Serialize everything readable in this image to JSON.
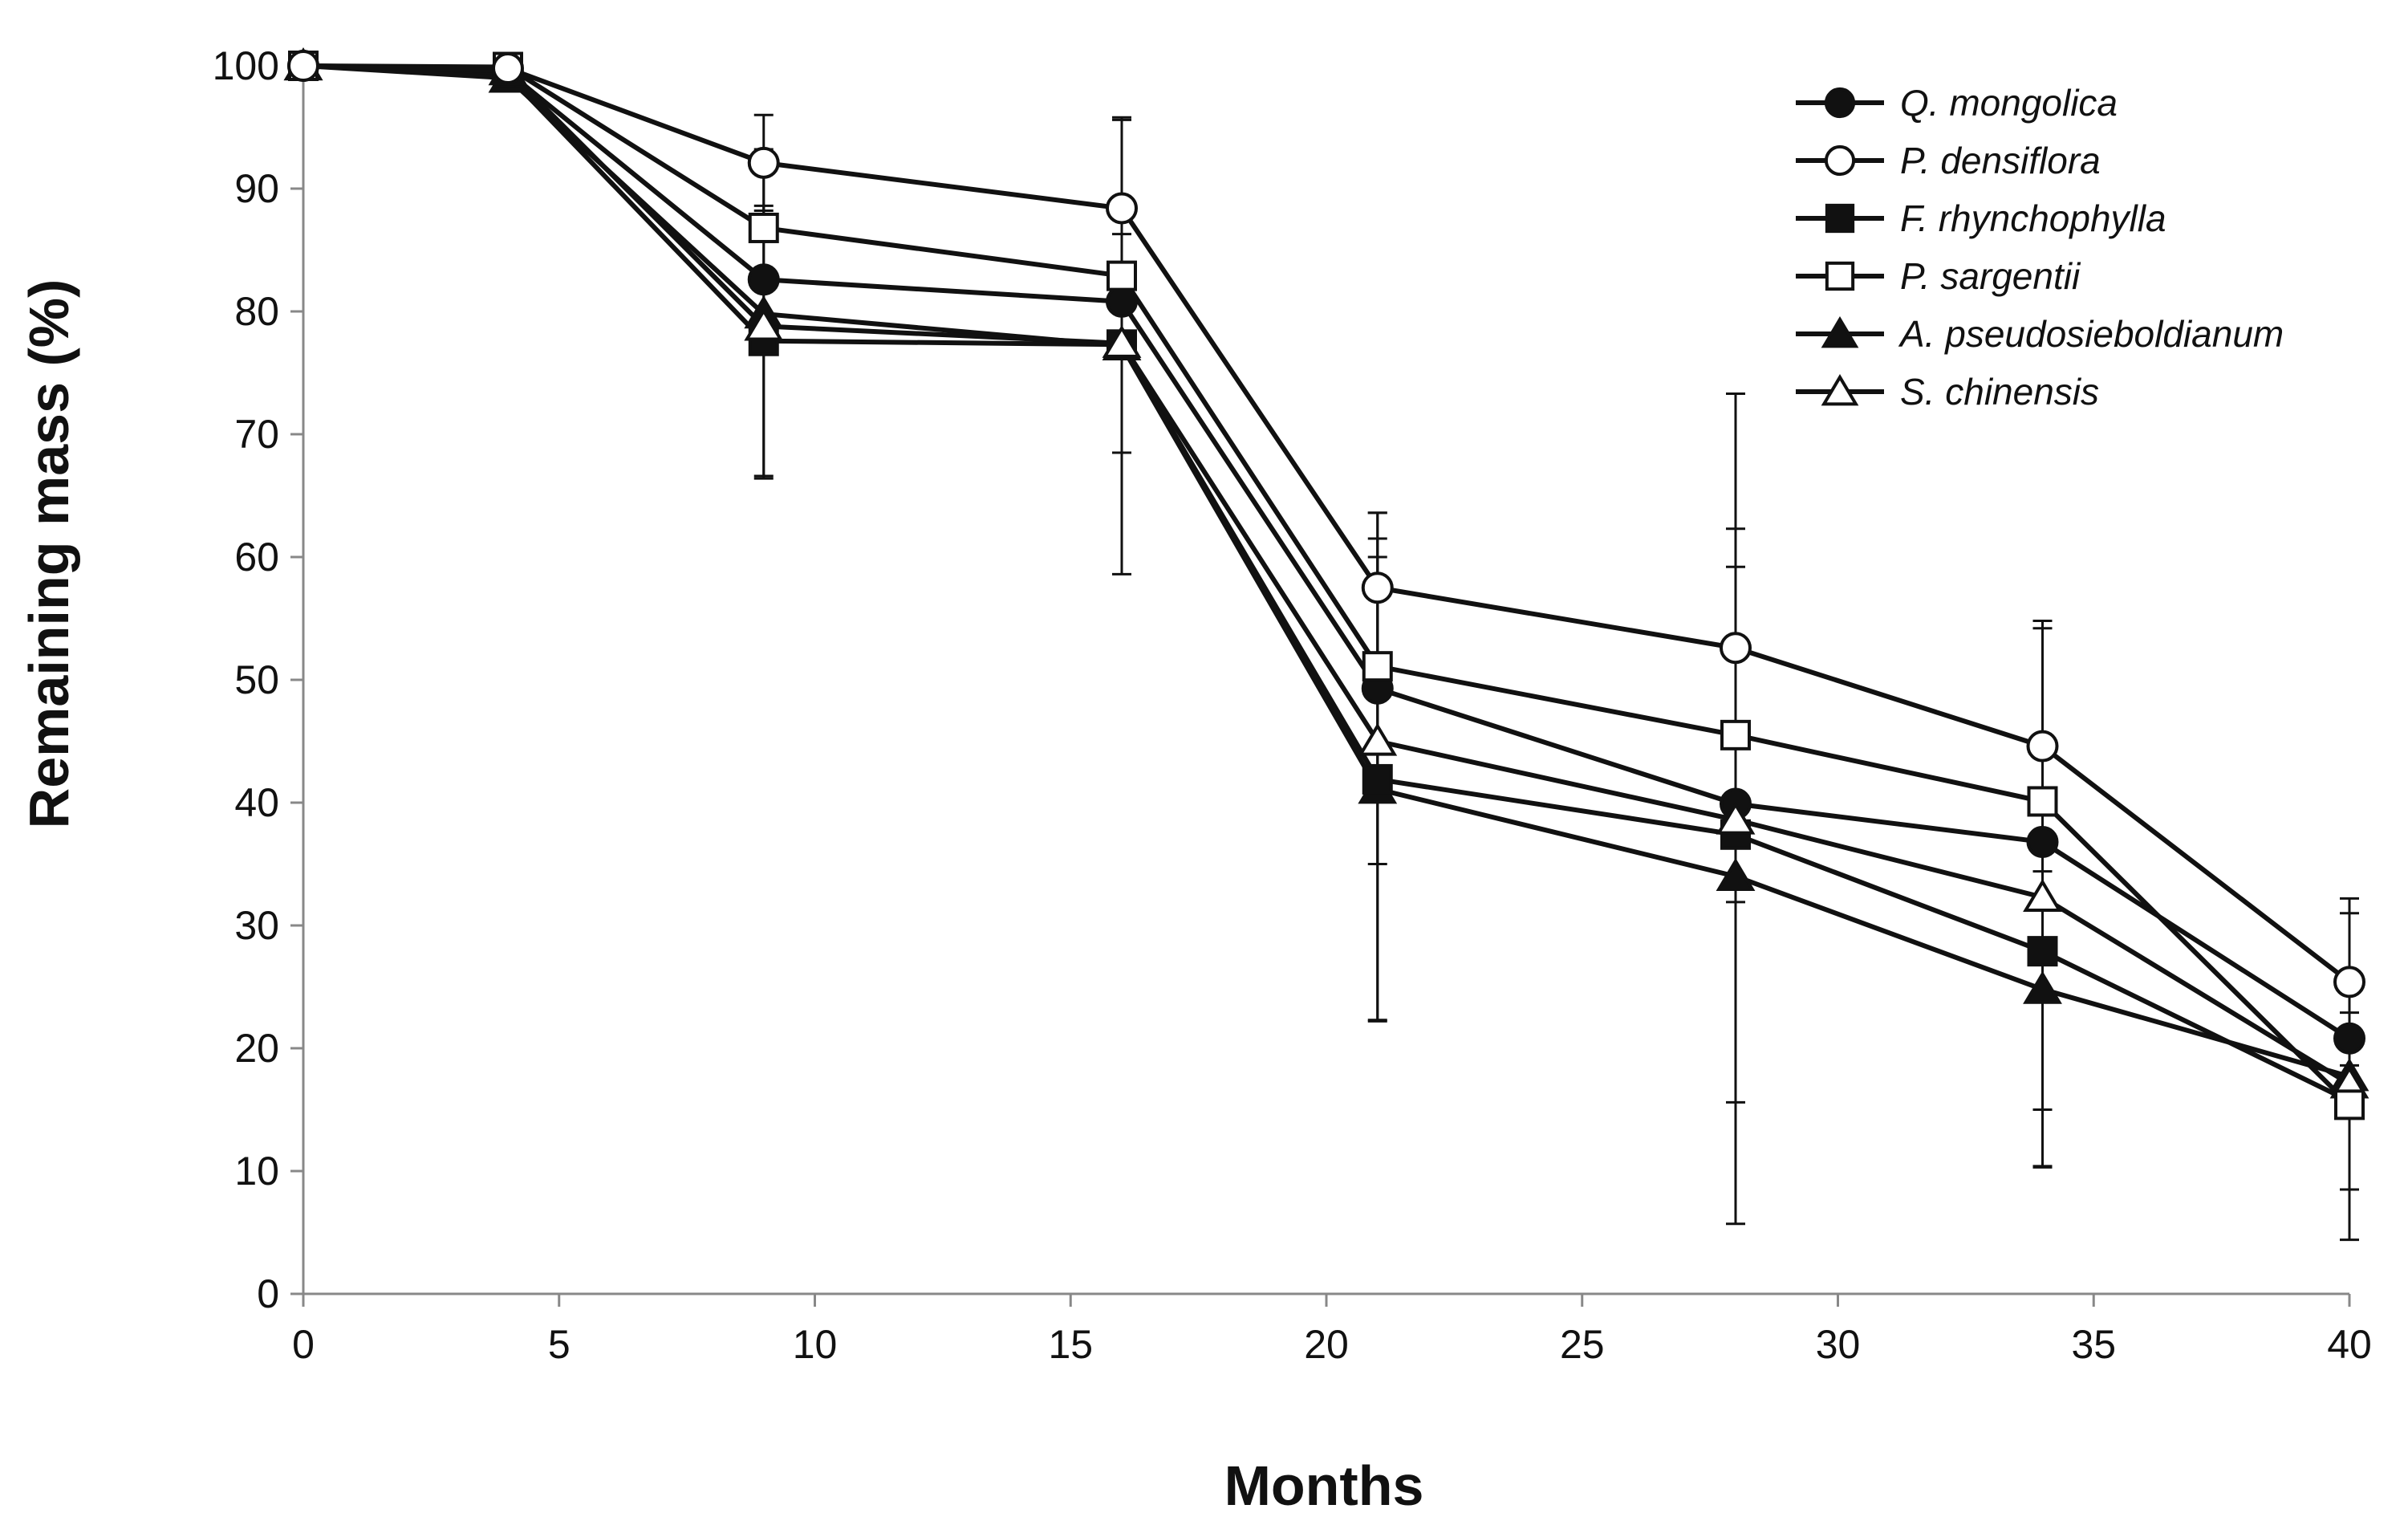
{
  "chart_data": {
    "type": "line",
    "title": "",
    "xlabel": "Months",
    "ylabel": "Remaining mass (%)",
    "xlim": [
      0,
      40
    ],
    "ylim": [
      0,
      100
    ],
    "xticks": [
      0,
      5,
      10,
      15,
      20,
      25,
      30,
      35,
      40
    ],
    "yticks": [
      0,
      10,
      20,
      30,
      40,
      50,
      60,
      70,
      80,
      90,
      100
    ],
    "grid": false,
    "legend_position": "top-right",
    "x": [
      0,
      4,
      9,
      16,
      21,
      28,
      34,
      40
    ],
    "series": [
      {
        "name": "Q. mongolica",
        "marker": "circle",
        "fill": "filled",
        "values": [
          100,
          99.5,
          82.6,
          80.8,
          49.3,
          39.9,
          36.8,
          20.8
        ],
        "errors": [
          0,
          0,
          0,
          0,
          14.3,
          0,
          0,
          0
        ]
      },
      {
        "name": "P. densiflora",
        "marker": "circle",
        "fill": "open",
        "values": [
          100,
          99.8,
          92.1,
          88.4,
          57.5,
          52.6,
          44.6,
          25.4
        ],
        "errors": [
          0,
          0,
          3.9,
          7.2,
          6.1,
          20.7,
          10.2,
          6.8
        ]
      },
      {
        "name": "F. rhynchophylla",
        "marker": "square",
        "fill": "filled",
        "values": [
          100,
          99.2,
          77.6,
          77.3,
          41.9,
          37.4,
          27.9,
          15.7
        ],
        "errors": [
          0,
          0,
          11.0,
          0,
          19.6,
          21.8,
          12.9,
          7.2
        ]
      },
      {
        "name": "P. sargentii",
        "marker": "square",
        "fill": "open",
        "values": [
          100,
          99.9,
          86.8,
          82.9,
          51.1,
          45.5,
          40.1,
          15.4
        ],
        "errors": [
          0,
          0,
          0,
          0,
          0,
          0,
          0,
          0
        ]
      },
      {
        "name": "A. pseudosieboldianum",
        "marker": "triangle",
        "fill": "filled",
        "values": [
          100,
          99.0,
          79.8,
          77.2,
          41.1,
          34.0,
          24.8,
          17.7
        ],
        "errors": [
          0,
          0,
          13.4,
          18.6,
          18.9,
          28.3,
          14.5,
          13.3
        ]
      },
      {
        "name": "S. chinensis",
        "marker": "triangle",
        "fill": "open",
        "values": [
          100,
          99.6,
          78.8,
          77.4,
          45.0,
          38.6,
          32.3,
          17.1
        ],
        "errors": [
          0,
          0,
          0,
          8.9,
          0,
          0,
          21.9,
          0
        ]
      }
    ]
  }
}
